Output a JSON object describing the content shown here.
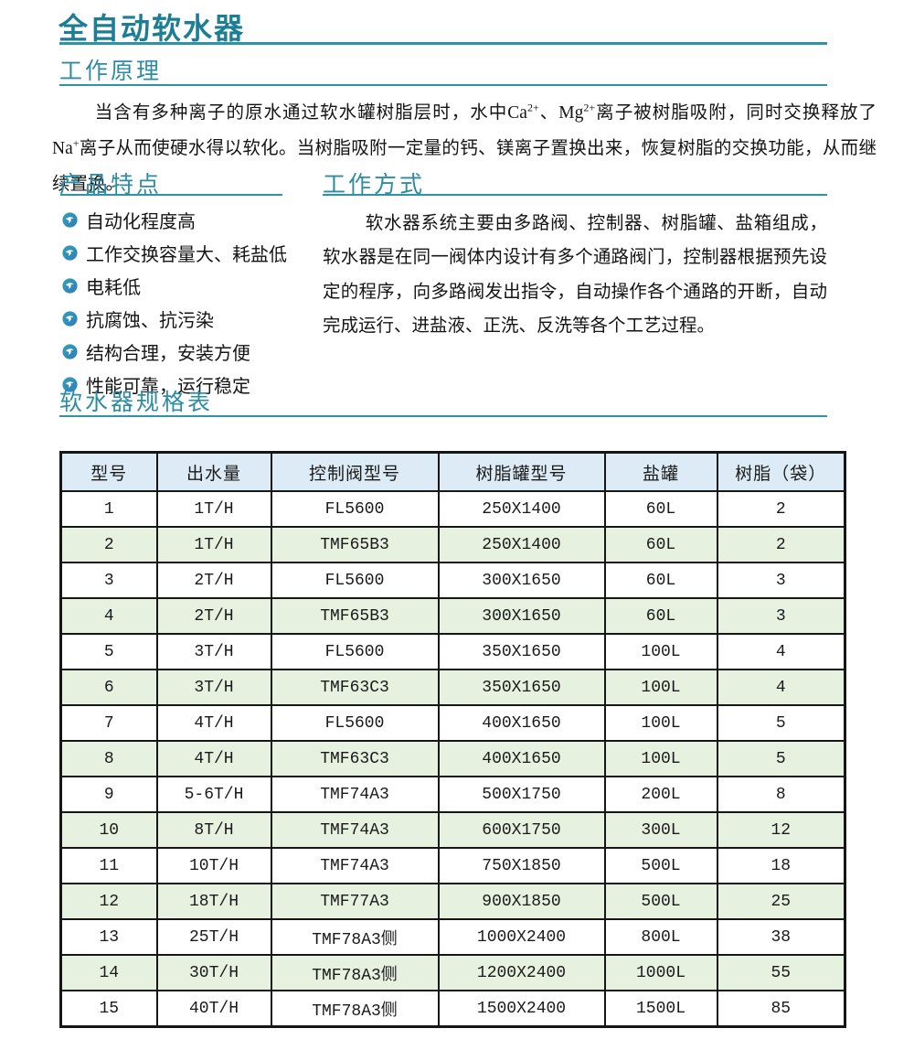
{
  "page": {
    "title": "全自动软水器"
  },
  "colors": {
    "title_teal": "#1b7e94",
    "heading_teal": "#2e8ca2",
    "rule_teal": "#2e93a6",
    "table_header_bg": "#dcebf5",
    "table_alt_row_bg": "#e7f1e0",
    "table_border": "#161616",
    "feature_icon_teal": "#35a0b5",
    "feature_icon_blue": "#2d7dbb"
  },
  "sections": {
    "principle": {
      "heading": "工作原理",
      "p1": "当含有多种离子的原水通过软水罐树脂层时，水中Ca",
      "sup1": "2+",
      "p2": "、Mg",
      "sup2": "2+",
      "p3": "离子被树脂吸附，同时交换释放了Na",
      "sup3": "+",
      "p4": "离子从而使硬水得以软化。当树脂吸附一定量的钙、镁离子置换出来，恢复树脂的交换功能，从而继续置换。"
    },
    "features": {
      "heading": "产品特点",
      "icon_name": "swirl-bullet-icon",
      "items": [
        "自动化程度高",
        "工作交换容量大、耗盐低",
        "电耗低",
        "抗腐蚀、抗污染",
        "结构合理，安装方便",
        "性能可靠，运行稳定"
      ]
    },
    "method": {
      "heading": "工作方式",
      "paragraph": "软水器系统主要由多路阀、控制器、树脂罐、盐箱组成，软水器是在同一阀体内设计有多个通路阀门，控制器根据预先设定的程序，向多路阀发出指令，自动操作各个通路的开断，自动完成运行、进盐液、正洗、反洗等各个工艺过程。"
    },
    "spec": {
      "heading": "软水器规格表"
    }
  },
  "spec_table": {
    "columns": [
      "型号",
      "出水量",
      "控制阀型号",
      "树脂罐型号",
      "盐罐",
      "树脂（袋）"
    ],
    "rows": [
      [
        "1",
        "1T/H",
        "FL5600",
        "250X1400",
        "60L",
        "2"
      ],
      [
        "2",
        "1T/H",
        "TMF65B3",
        "250X1400",
        "60L",
        "2"
      ],
      [
        "3",
        "2T/H",
        "FL5600",
        "300X1650",
        "60L",
        "3"
      ],
      [
        "4",
        "2T/H",
        "TMF65B3",
        "300X1650",
        "60L",
        "3"
      ],
      [
        "5",
        "3T/H",
        "FL5600",
        "350X1650",
        "100L",
        "4"
      ],
      [
        "6",
        "3T/H",
        "TMF63C3",
        "350X1650",
        "100L",
        "4"
      ],
      [
        "7",
        "4T/H",
        "FL5600",
        "400X1650",
        "100L",
        "5"
      ],
      [
        "8",
        "4T/H",
        "TMF63C3",
        "400X1650",
        "100L",
        "5"
      ],
      [
        "9",
        "5-6T/H",
        "TMF74A3",
        "500X1750",
        "200L",
        "8"
      ],
      [
        "10",
        "8T/H",
        "TMF74A3",
        "600X1750",
        "300L",
        "12"
      ],
      [
        "11",
        "10T/H",
        "TMF74A3",
        "750X1850",
        "500L",
        "18"
      ],
      [
        "12",
        "18T/H",
        "TMF77A3",
        "900X1850",
        "500L",
        "25"
      ],
      [
        "13",
        "25T/H",
        "TMF78A3侧",
        "1000X2400",
        "800L",
        "38"
      ],
      [
        "14",
        "30T/H",
        "TMF78A3侧",
        "1200X2400",
        "1000L",
        "55"
      ],
      [
        "15",
        "40T/H",
        "TMF78A3侧",
        "1500X2400",
        "1500L",
        "85"
      ]
    ]
  }
}
